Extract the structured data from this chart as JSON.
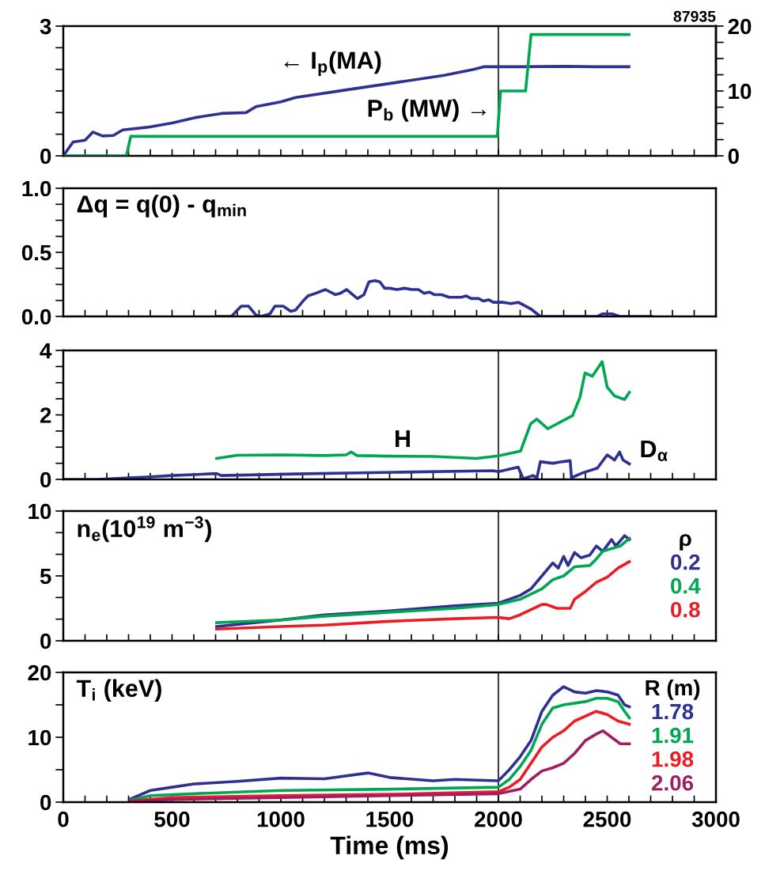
{
  "chart_data": [
    {
      "type": "line",
      "title": "87935",
      "xlim": [
        0,
        3000
      ],
      "ylim": [
        0,
        3
      ],
      "y2lim": [
        0,
        20
      ],
      "xticks": [
        {
          "value": 0,
          "label": null
        },
        {
          "value": 100,
          "label": null
        },
        {
          "value": 200,
          "label": null
        },
        {
          "value": 300,
          "label": null
        },
        {
          "value": 400,
          "label": null
        },
        {
          "value": 500,
          "label": null
        },
        {
          "value": 600,
          "label": null
        },
        {
          "value": 700,
          "label": null
        },
        {
          "value": 800,
          "label": null
        },
        {
          "value": 900,
          "label": null
        },
        {
          "value": 1000,
          "label": null
        },
        {
          "value": 1100,
          "label": null
        },
        {
          "value": 1200,
          "label": null
        },
        {
          "value": 1300,
          "label": null
        },
        {
          "value": 1400,
          "label": null
        },
        {
          "value": 1500,
          "label": null
        },
        {
          "value": 1600,
          "label": null
        },
        {
          "value": 1700,
          "label": null
        },
        {
          "value": 1800,
          "label": null
        },
        {
          "value": 1900,
          "label": null
        },
        {
          "value": 2000,
          "label": null
        },
        {
          "value": 2100,
          "label": null
        },
        {
          "value": 2200,
          "label": null
        },
        {
          "value": 2300,
          "label": null
        },
        {
          "value": 2400,
          "label": null
        },
        {
          "value": 2500,
          "label": null
        },
        {
          "value": 2600,
          "label": null
        },
        {
          "value": 2700,
          "label": null
        },
        {
          "value": 2800,
          "label": null
        },
        {
          "value": 2900,
          "label": null
        },
        {
          "value": 3000,
          "label": null
        }
      ],
      "yticks": [
        0,
        {
          "value": 0.5,
          "label": null
        },
        {
          "value": 1,
          "label": null
        },
        {
          "value": 1.5,
          "label": null
        },
        {
          "value": 2,
          "label": null
        },
        {
          "value": 2.5,
          "label": null
        },
        3
      ],
      "y2ticks": [
        0,
        {
          "value": 2.5,
          "label": null
        },
        {
          "value": 5,
          "label": null
        },
        {
          "value": 7.5,
          "label": null
        },
        10,
        {
          "value": 12.5,
          "label": null
        },
        {
          "value": 15,
          "label": null
        },
        {
          "value": 17.5,
          "label": null
        },
        20
      ],
      "tick_labels": "y",
      "ref_lines": [
        {
          "axis": "x",
          "value": 2000,
          "color": "#404040"
        }
      ],
      "annotations": [
        "← I$_{p}$(MA)",
        "P$_{b}$ (MW) →"
      ],
      "series": [
        {
          "color": "#2e3192",
          "x": [
            0,
            45,
            100,
            136,
            180,
            230,
            273,
            386,
            500,
            614,
            727,
            840,
            886,
            1000,
            1068,
            1295,
            1523,
            1750,
            1886,
            1932,
            2100,
            2300,
            2450,
            2600
          ],
          "values": [
            0,
            0.32,
            0.36,
            0.55,
            0.46,
            0.47,
            0.6,
            0.66,
            0.76,
            0.89,
            0.98,
            1.0,
            1.14,
            1.25,
            1.35,
            1.52,
            1.69,
            1.86,
            2.0,
            2.06,
            2.06,
            2.07,
            2.06,
            2.06
          ]
        },
        {
          "color": "#00a651",
          "axis": "y2",
          "x": [
            0,
            290,
            310,
            1995,
            2010,
            2125,
            2150,
            2600
          ],
          "values": [
            0,
            0,
            3,
            3,
            10,
            10,
            18.7,
            18.7
          ]
        }
      ]
    },
    {
      "type": "line",
      "xlim": [
        0,
        3000
      ],
      "ylim": [
        0,
        1
      ],
      "xticks": [
        {
          "value": 0,
          "label": null
        },
        {
          "value": 100,
          "label": null
        },
        {
          "value": 200,
          "label": null
        },
        {
          "value": 300,
          "label": null
        },
        {
          "value": 400,
          "label": null
        },
        {
          "value": 500,
          "label": null
        },
        {
          "value": 600,
          "label": null
        },
        {
          "value": 700,
          "label": null
        },
        {
          "value": 800,
          "label": null
        },
        {
          "value": 900,
          "label": null
        },
        {
          "value": 1000,
          "label": null
        },
        {
          "value": 1100,
          "label": null
        },
        {
          "value": 1200,
          "label": null
        },
        {
          "value": 1300,
          "label": null
        },
        {
          "value": 1400,
          "label": null
        },
        {
          "value": 1500,
          "label": null
        },
        {
          "value": 1600,
          "label": null
        },
        {
          "value": 1700,
          "label": null
        },
        {
          "value": 1800,
          "label": null
        },
        {
          "value": 1900,
          "label": null
        },
        {
          "value": 2000,
          "label": null
        },
        {
          "value": 2100,
          "label": null
        },
        {
          "value": 2200,
          "label": null
        },
        {
          "value": 2300,
          "label": null
        },
        {
          "value": 2400,
          "label": null
        },
        {
          "value": 2500,
          "label": null
        },
        {
          "value": 2600,
          "label": null
        },
        {
          "value": 2700,
          "label": null
        },
        {
          "value": 2800,
          "label": null
        },
        {
          "value": 2900,
          "label": null
        },
        {
          "value": 3000,
          "label": null
        }
      ],
      "yticks": [
        {
          "value": 0,
          "label": "0.0"
        },
        {
          "value": 0.125,
          "label": null
        },
        {
          "value": 0.25,
          "label": null
        },
        {
          "value": 0.375,
          "label": null
        },
        {
          "value": 0.5,
          "label": "0.5"
        },
        {
          "value": 0.625,
          "label": null
        },
        {
          "value": 0.75,
          "label": null
        },
        {
          "value": 0.875,
          "label": null
        },
        {
          "value": 1,
          "label": "1.0"
        }
      ],
      "tick_labels": "y",
      "ref_lines": [
        {
          "axis": "x",
          "value": 2000,
          "color": "#404040"
        }
      ],
      "annotations": [
        "Δq = q(0) - q$_{min}$"
      ],
      "series": [
        {
          "color": "#2e3192",
          "x": [
            705,
            773,
            795,
            818,
            852,
            886,
            909,
            950,
            973,
            1011,
            1045,
            1068,
            1102,
            1125,
            1159,
            1205,
            1250,
            1273,
            1302,
            1330,
            1352,
            1382,
            1405,
            1432,
            1455,
            1477,
            1500,
            1534,
            1568,
            1602,
            1632,
            1659,
            1682,
            1705,
            1739,
            1773,
            1830,
            1852,
            1875,
            1909,
            1932,
            1955,
            1977,
            2023,
            2057,
            2091,
            2114,
            2148,
            2193,
            2455,
            2477,
            2523,
            2557,
            2705
          ],
          "values": [
            0,
            0,
            0.04,
            0.08,
            0.08,
            0.01,
            0,
            0.02,
            0.08,
            0.08,
            0.04,
            0.05,
            0.12,
            0.16,
            0.18,
            0.21,
            0.17,
            0.18,
            0.21,
            0.17,
            0.14,
            0.17,
            0.27,
            0.28,
            0.27,
            0.22,
            0.22,
            0.21,
            0.22,
            0.21,
            0.21,
            0.18,
            0.19,
            0.17,
            0.17,
            0.15,
            0.15,
            0.16,
            0.14,
            0.14,
            0.12,
            0.13,
            0.11,
            0.11,
            0.1,
            0.11,
            0.09,
            0.06,
            0,
            0,
            0.02,
            0.02,
            0,
            0
          ]
        }
      ]
    },
    {
      "type": "line",
      "xlim": [
        0,
        3000
      ],
      "ylim": [
        0,
        4
      ],
      "xticks": [
        {
          "value": 0,
          "label": null
        },
        {
          "value": 100,
          "label": null
        },
        {
          "value": 200,
          "label": null
        },
        {
          "value": 300,
          "label": null
        },
        {
          "value": 400,
          "label": null
        },
        {
          "value": 500,
          "label": null
        },
        {
          "value": 600,
          "label": null
        },
        {
          "value": 700,
          "label": null
        },
        {
          "value": 800,
          "label": null
        },
        {
          "value": 900,
          "label": null
        },
        {
          "value": 1000,
          "label": null
        },
        {
          "value": 1100,
          "label": null
        },
        {
          "value": 1200,
          "label": null
        },
        {
          "value": 1300,
          "label": null
        },
        {
          "value": 1400,
          "label": null
        },
        {
          "value": 1500,
          "label": null
        },
        {
          "value": 1600,
          "label": null
        },
        {
          "value": 1700,
          "label": null
        },
        {
          "value": 1800,
          "label": null
        },
        {
          "value": 1900,
          "label": null
        },
        {
          "value": 2000,
          "label": null
        },
        {
          "value": 2100,
          "label": null
        },
        {
          "value": 2200,
          "label": null
        },
        {
          "value": 2300,
          "label": null
        },
        {
          "value": 2400,
          "label": null
        },
        {
          "value": 2500,
          "label": null
        },
        {
          "value": 2600,
          "label": null
        },
        {
          "value": 2700,
          "label": null
        },
        {
          "value": 2800,
          "label": null
        },
        {
          "value": 2900,
          "label": null
        },
        {
          "value": 3000,
          "label": null
        }
      ],
      "yticks": [
        0,
        {
          "value": 0.5,
          "label": null
        },
        {
          "value": 1,
          "label": null
        },
        {
          "value": 1.5,
          "label": null
        },
        2,
        {
          "value": 2.5,
          "label": null
        },
        {
          "value": 3,
          "label": null
        },
        {
          "value": 3.5,
          "label": null
        },
        4
      ],
      "tick_labels": "y",
      "ref_lines": [
        {
          "axis": "x",
          "value": 2000,
          "color": "#404040"
        }
      ],
      "annotations": [
        "H",
        "D$_{α}$"
      ],
      "series": [
        {
          "color": "#00a651",
          "x": [
            705,
            800,
            1000,
            1200,
            1300,
            1323,
            1350,
            1500,
            1700,
            1900,
            2000,
            2102,
            2148,
            2177,
            2227,
            2341,
            2375,
            2398,
            2432,
            2477,
            2500,
            2534,
            2580,
            2602
          ],
          "values": [
            0.65,
            0.75,
            0.76,
            0.74,
            0.76,
            0.85,
            0.74,
            0.72,
            0.71,
            0.65,
            0.73,
            0.88,
            1.72,
            1.87,
            1.57,
            1.98,
            2.55,
            3.3,
            3.2,
            3.65,
            2.86,
            2.59,
            2.48,
            2.7
          ]
        },
        {
          "color": "#2e3192",
          "x": [
            0,
            150,
            250,
            400,
            500,
            705,
            727,
            1068,
            1523,
            1977,
            2000,
            2091,
            2114,
            2159,
            2177,
            2193,
            2250,
            2295,
            2330,
            2336,
            2386,
            2455,
            2500,
            2534,
            2557,
            2573,
            2602
          ],
          "values": [
            0,
            0,
            0.03,
            0.08,
            0.12,
            0.18,
            0.12,
            0.17,
            0.22,
            0.27,
            0.24,
            0.38,
            0.02,
            0.12,
            0.05,
            0.55,
            0.5,
            0.55,
            0.58,
            0.05,
            0.2,
            0.35,
            0.76,
            0.6,
            0.85,
            0.6,
            0.48
          ]
        }
      ]
    },
    {
      "type": "line",
      "xlim": [
        0,
        3000
      ],
      "ylim": [
        0,
        10
      ],
      "legend": "right",
      "legend_title": "ρ",
      "xticks": [
        {
          "value": 0,
          "label": null
        },
        {
          "value": 100,
          "label": null
        },
        {
          "value": 200,
          "label": null
        },
        {
          "value": 300,
          "label": null
        },
        {
          "value": 400,
          "label": null
        },
        {
          "value": 500,
          "label": null
        },
        {
          "value": 600,
          "label": null
        },
        {
          "value": 700,
          "label": null
        },
        {
          "value": 800,
          "label": null
        },
        {
          "value": 900,
          "label": null
        },
        {
          "value": 1000,
          "label": null
        },
        {
          "value": 1100,
          "label": null
        },
        {
          "value": 1200,
          "label": null
        },
        {
          "value": 1300,
          "label": null
        },
        {
          "value": 1400,
          "label": null
        },
        {
          "value": 1500,
          "label": null
        },
        {
          "value": 1600,
          "label": null
        },
        {
          "value": 1700,
          "label": null
        },
        {
          "value": 1800,
          "label": null
        },
        {
          "value": 1900,
          "label": null
        },
        {
          "value": 2000,
          "label": null
        },
        {
          "value": 2100,
          "label": null
        },
        {
          "value": 2200,
          "label": null
        },
        {
          "value": 2300,
          "label": null
        },
        {
          "value": 2400,
          "label": null
        },
        {
          "value": 2500,
          "label": null
        },
        {
          "value": 2600,
          "label": null
        },
        {
          "value": 2700,
          "label": null
        },
        {
          "value": 2800,
          "label": null
        },
        {
          "value": 2900,
          "label": null
        },
        {
          "value": 3000,
          "label": null
        }
      ],
      "yticks": [
        0,
        {
          "value": 1.667,
          "label": null
        },
        {
          "value": 3.333,
          "label": null
        },
        5,
        {
          "value": 6.667,
          "label": null
        },
        {
          "value": 8.333,
          "label": null
        },
        10
      ],
      "tick_labels": "y",
      "ref_lines": [
        {
          "axis": "x",
          "value": 2000,
          "color": "#404040"
        }
      ],
      "annotations": [
        "n$_{e}$(10$^{19}$ m$^{−3}$)"
      ],
      "series": [
        {
          "name": "0.2",
          "color": "#2e3192",
          "x": [
            705,
            1000,
            1200,
            1500,
            1800,
            2000,
            2100,
            2150,
            2200,
            2250,
            2275,
            2300,
            2320,
            2350,
            2380,
            2420,
            2450,
            2480,
            2520,
            2540,
            2580,
            2602
          ],
          "values": [
            1.1,
            1.6,
            2.0,
            2.3,
            2.7,
            2.9,
            3.5,
            4.0,
            5.0,
            6.0,
            5.6,
            6.5,
            5.8,
            6.8,
            6.4,
            6.6,
            7.3,
            6.9,
            7.8,
            7.3,
            8.1,
            7.8
          ]
        },
        {
          "name": "0.4",
          "color": "#00a651",
          "x": [
            705,
            1000,
            1200,
            1500,
            1800,
            2000,
            2100,
            2200,
            2250,
            2300,
            2350,
            2420,
            2450,
            2480,
            2520,
            2560,
            2602
          ],
          "values": [
            1.4,
            1.6,
            1.9,
            2.2,
            2.5,
            2.8,
            3.2,
            4.0,
            4.7,
            5.0,
            5.7,
            5.8,
            6.3,
            6.9,
            7.1,
            7.3,
            7.9
          ]
        },
        {
          "name": "0.8",
          "color": "#ed1c24",
          "x": [
            705,
            1000,
            1200,
            1500,
            1800,
            2000,
            2050,
            2100,
            2150,
            2200,
            2220,
            2270,
            2330,
            2350,
            2400,
            2450,
            2500,
            2550,
            2602
          ],
          "values": [
            0.9,
            1.1,
            1.2,
            1.5,
            1.7,
            1.8,
            1.7,
            2.0,
            2.4,
            2.8,
            2.8,
            2.5,
            2.5,
            3.2,
            3.8,
            4.5,
            4.9,
            5.6,
            6.1
          ]
        }
      ]
    },
    {
      "type": "line",
      "xlim": [
        0,
        3000
      ],
      "ylim": [
        0,
        20
      ],
      "legend": "right",
      "legend_title": "R (m)",
      "xlabel": "Time (ms)",
      "xticks": [
        {
          "value": 0,
          "label": "0"
        },
        {
          "value": 100,
          "label": null
        },
        {
          "value": 200,
          "label": null
        },
        {
          "value": 300,
          "label": null
        },
        {
          "value": 400,
          "label": null
        },
        {
          "value": 500,
          "label": "500"
        },
        {
          "value": 600,
          "label": null
        },
        {
          "value": 700,
          "label": null
        },
        {
          "value": 800,
          "label": null
        },
        {
          "value": 900,
          "label": null
        },
        {
          "value": 1000,
          "label": "1000"
        },
        {
          "value": 1100,
          "label": null
        },
        {
          "value": 1200,
          "label": null
        },
        {
          "value": 1300,
          "label": null
        },
        {
          "value": 1400,
          "label": null
        },
        {
          "value": 1500,
          "label": "1500"
        },
        {
          "value": 1600,
          "label": null
        },
        {
          "value": 1700,
          "label": null
        },
        {
          "value": 1800,
          "label": null
        },
        {
          "value": 1900,
          "label": null
        },
        {
          "value": 2000,
          "label": "2000"
        },
        {
          "value": 2100,
          "label": null
        },
        {
          "value": 2200,
          "label": null
        },
        {
          "value": 2300,
          "label": null
        },
        {
          "value": 2400,
          "label": null
        },
        {
          "value": 2500,
          "label": "2500"
        },
        {
          "value": 2600,
          "label": null
        },
        {
          "value": 2700,
          "label": null
        },
        {
          "value": 2800,
          "label": null
        },
        {
          "value": 2900,
          "label": null
        },
        {
          "value": 3000,
          "label": "3000"
        }
      ],
      "yticks": [
        0,
        {
          "value": 5,
          "label": null
        },
        10,
        {
          "value": 15,
          "label": null
        },
        20
      ],
      "ref_lines": [
        {
          "axis": "x",
          "value": 2000,
          "color": "#404040"
        }
      ],
      "annotations": [
        "T$_{i}$ (keV)"
      ],
      "series": [
        {
          "name": "1.78",
          "color": "#2e3192",
          "x": [
            310,
            400,
            500,
            600,
            800,
            1000,
            1200,
            1400,
            1500,
            1700,
            1800,
            2000,
            2050,
            2100,
            2150,
            2200,
            2250,
            2300,
            2350,
            2400,
            2450,
            2500,
            2550,
            2580,
            2602
          ],
          "values": [
            0.5,
            1.8,
            2.3,
            2.8,
            3.2,
            3.7,
            3.6,
            4.5,
            3.8,
            3.3,
            3.5,
            3.3,
            5,
            7,
            9.5,
            14,
            16.5,
            17.8,
            17,
            16.8,
            17.2,
            17,
            16.5,
            15,
            14.7
          ]
        },
        {
          "name": "1.91",
          "color": "#00a651",
          "x": [
            310,
            400,
            600,
            1000,
            1500,
            2000,
            2050,
            2100,
            2150,
            2200,
            2250,
            2300,
            2400,
            2450,
            2500,
            2550,
            2580,
            2602
          ],
          "values": [
            0.3,
            1.0,
            1.3,
            1.8,
            2.0,
            2.3,
            3.5,
            5.5,
            8,
            12,
            14.5,
            15,
            15.5,
            16,
            16,
            15.5,
            14,
            13
          ]
        },
        {
          "name": "1.98",
          "color": "#ed1c24",
          "x": [
            310,
            500,
            1000,
            1500,
            2000,
            2050,
            2100,
            2150,
            2200,
            2250,
            2300,
            2350,
            2450,
            2500,
            2550,
            2602
          ],
          "values": [
            0.2,
            0.7,
            1.0,
            1.2,
            1.6,
            2.3,
            3.5,
            6,
            8.5,
            10,
            11,
            12.5,
            14,
            13.5,
            12.5,
            12
          ]
        },
        {
          "name": "2.06",
          "color": "#9e1f63",
          "x": [
            310,
            500,
            1000,
            1500,
            2000,
            2100,
            2150,
            2200,
            2250,
            2300,
            2350,
            2400,
            2450,
            2480,
            2520,
            2560,
            2602
          ],
          "values": [
            0.1,
            0.4,
            0.7,
            1.0,
            1.3,
            2.0,
            3.5,
            4.8,
            5.3,
            6.0,
            7.5,
            9.5,
            10.5,
            11,
            10,
            9,
            9
          ]
        }
      ]
    }
  ]
}
